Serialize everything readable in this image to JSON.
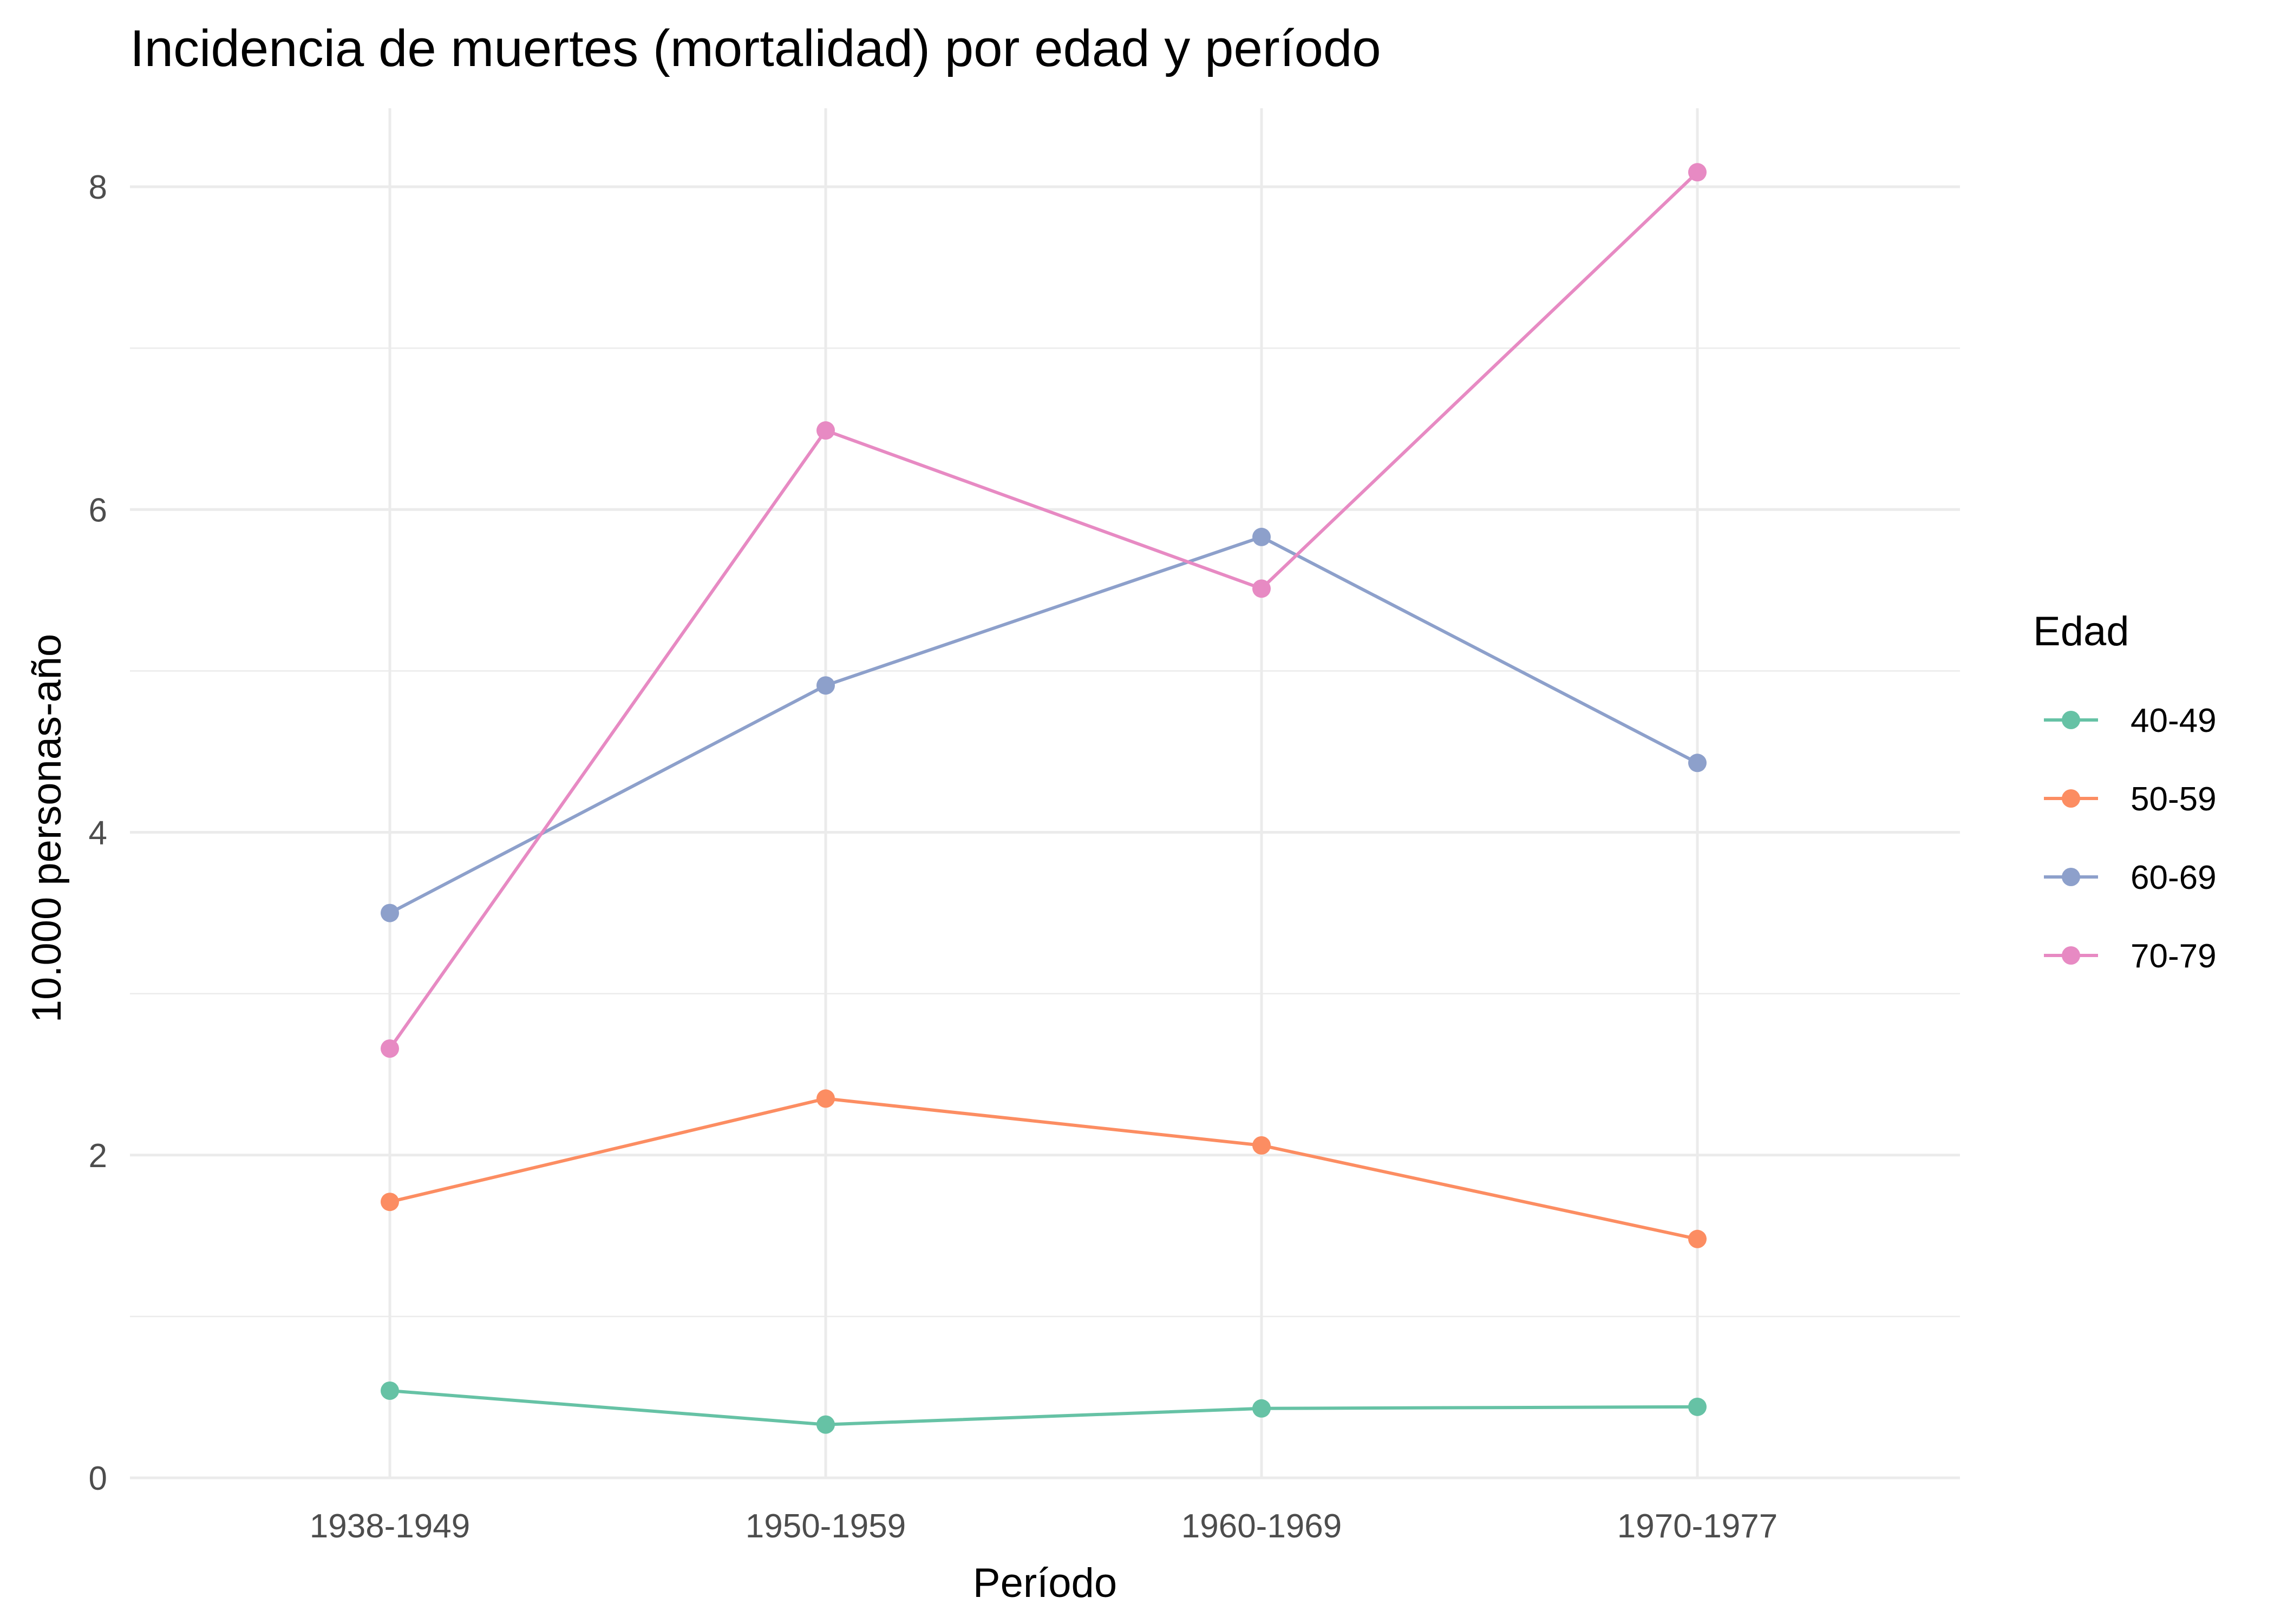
{
  "chart_data": {
    "type": "line",
    "title": "Incidencia de muertes (mortalidad) por edad y período",
    "xlabel": "Período",
    "ylabel": "10.000 personas-año",
    "categories": [
      "1938-1949",
      "1950-1959",
      "1960-1969",
      "1970-1977"
    ],
    "ylim": [
      0,
      8.4
    ],
    "yticks": [
      0,
      2,
      4,
      6,
      8
    ],
    "grid": true,
    "legend": {
      "title": "Edad",
      "placement": "right"
    },
    "series": [
      {
        "name": "40-49",
        "color": "#66c2a5",
        "values": [
          0.54,
          0.33,
          0.43,
          0.44
        ]
      },
      {
        "name": "50-59",
        "color": "#fc8d62",
        "values": [
          1.71,
          2.35,
          2.06,
          1.48
        ]
      },
      {
        "name": "60-69",
        "color": "#8da0cb",
        "values": [
          3.5,
          4.91,
          5.83,
          4.43
        ]
      },
      {
        "name": "70-79",
        "color": "#e78ac3",
        "values": [
          2.66,
          6.49,
          5.51,
          8.09
        ]
      }
    ]
  }
}
